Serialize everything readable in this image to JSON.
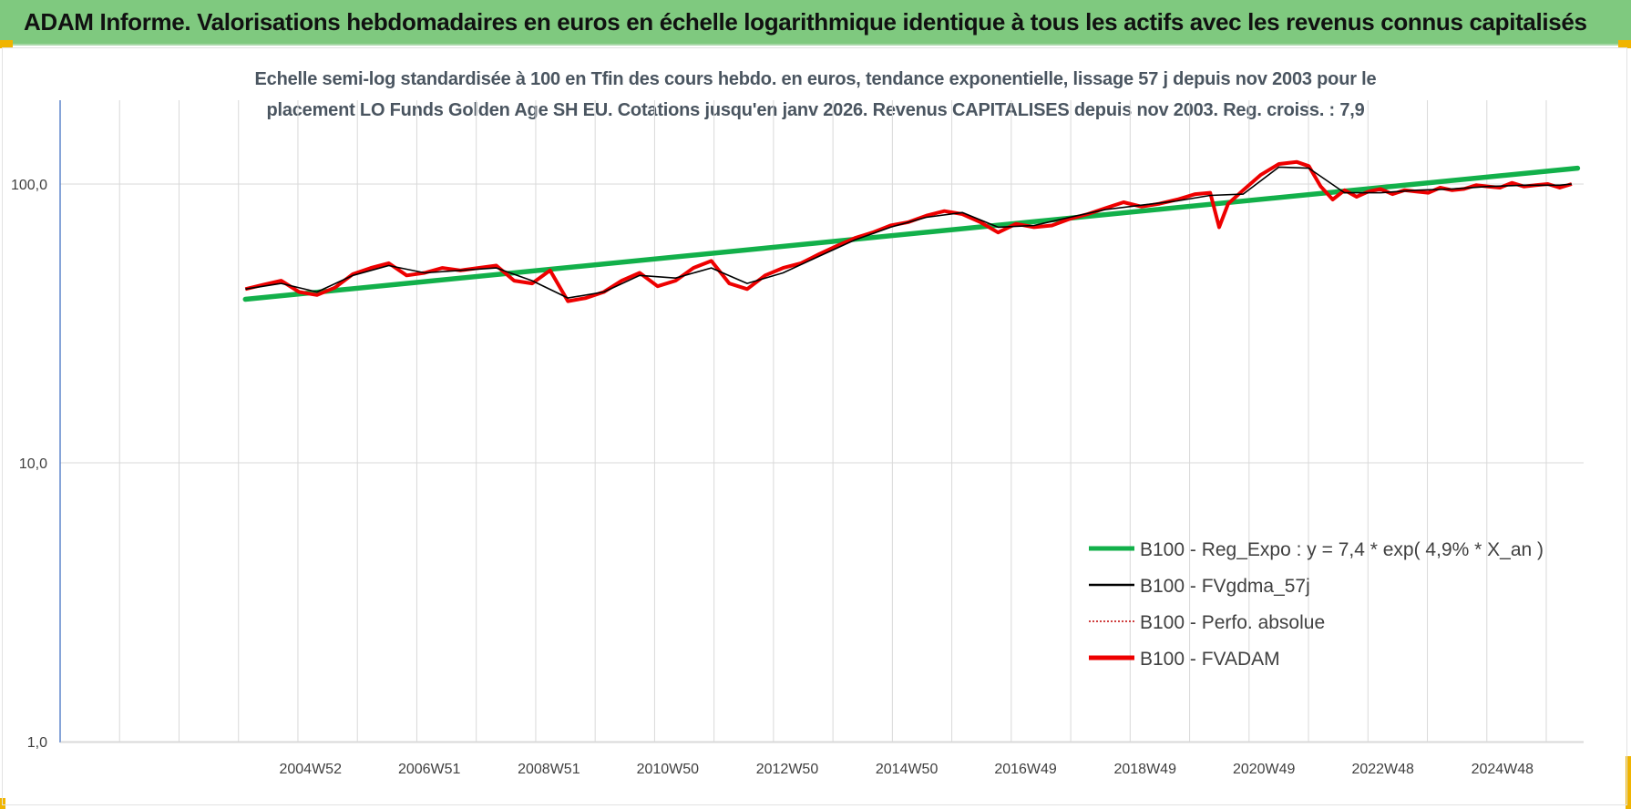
{
  "banner": {
    "title": "ADAM Informe. Valorisations hebdomadaires en euros en échelle logarithmique identique à tous les actifs avec les revenus connus capitalisés"
  },
  "colors": {
    "banner_bg": "#7fc97f",
    "corner_accent": "#f0b400",
    "reg_expo": "#12b04a",
    "fvgdma": "#000000",
    "perfo": "#c00000",
    "fvadam": "#ee0000"
  },
  "chart_data": {
    "type": "line",
    "title_line1": "Echelle semi-log standardisée à 100 en Tfin des cours hebdo. en euros, tendance exponentielle, lissage 57 j depuis nov 2003 pour le",
    "title_line2": "placement LO Funds Golden Age SH EU. Cotations jusqu'en janv 2026. Revenus CAPITALISES depuis nov 2003. Reg. croiss. : 7,9",
    "y_scale": "log",
    "ylim": [
      1,
      200
    ],
    "y_ticks": [
      "100,0",
      "10,0",
      "1,0"
    ],
    "y_tick_values": [
      100,
      10,
      1
    ],
    "xlim": [
      2000.8,
      2026.3
    ],
    "x_ticks": [
      "2004W52",
      "2006W51",
      "2008W51",
      "2010W50",
      "2012W50",
      "2014W50",
      "2016W49",
      "2018W49",
      "2020W49",
      "2022W48",
      "2024W48"
    ],
    "x_tick_values": [
      2004.99,
      2006.98,
      2008.98,
      2010.97,
      2012.97,
      2014.97,
      2016.96,
      2018.96,
      2020.95,
      2022.94,
      2024.94
    ],
    "grid": true,
    "legend_position": "bottom-right",
    "legend": [
      "B100 - Reg_Expo : y = 7,4 * exp( 4,9% *  X_an )",
      "B100 - FVgdma_57j",
      "B100 - Perfo. absolue",
      "B100 - FVADAM"
    ],
    "series": [
      {
        "name": "B100 - Reg_Expo : y = 7,4 * exp( 4,9% *  X_an )",
        "style": "line-thick",
        "x": [
          2003.9,
          2026.2
        ],
        "y": [
          38.6,
          114
        ]
      },
      {
        "name": "B100 - FVADAM",
        "style": "line-thick",
        "x": [
          2003.9,
          2004.2,
          2004.5,
          2004.8,
          2005.1,
          2005.4,
          2005.7,
          2006.0,
          2006.3,
          2006.6,
          2006.9,
          2007.2,
          2007.5,
          2007.8,
          2008.1,
          2008.4,
          2008.7,
          2009.0,
          2009.3,
          2009.6,
          2009.9,
          2010.2,
          2010.5,
          2010.8,
          2011.1,
          2011.4,
          2011.7,
          2012.0,
          2012.3,
          2012.6,
          2012.9,
          2013.2,
          2013.5,
          2013.8,
          2014.1,
          2014.4,
          2014.7,
          2015.0,
          2015.3,
          2015.6,
          2015.9,
          2016.2,
          2016.5,
          2016.8,
          2017.1,
          2017.4,
          2017.7,
          2018.0,
          2018.3,
          2018.6,
          2018.9,
          2019.2,
          2019.5,
          2019.8,
          2020.05,
          2020.2,
          2020.35,
          2020.6,
          2020.9,
          2021.2,
          2021.5,
          2021.7,
          2021.9,
          2022.1,
          2022.3,
          2022.5,
          2022.7,
          2022.9,
          2023.1,
          2023.3,
          2023.5,
          2023.7,
          2023.9,
          2024.1,
          2024.3,
          2024.5,
          2024.7,
          2024.9,
          2025.1,
          2025.3,
          2025.5,
          2025.7,
          2025.9,
          2026.1
        ],
        "y": [
          42,
          43.5,
          45,
          41,
          40,
          42.5,
          47.5,
          50,
          52,
          47,
          48,
          50,
          49,
          50,
          51,
          45,
          44,
          49,
          38,
          39,
          41,
          45,
          48,
          43,
          45,
          50,
          53,
          44,
          42,
          47,
          50,
          52,
          56,
          60,
          64,
          67,
          71,
          73,
          77,
          80,
          78,
          73,
          67,
          72,
          70,
          71,
          75,
          78,
          82,
          86,
          83,
          85,
          88,
          92,
          93,
          70,
          85,
          95,
          108,
          118,
          120,
          116,
          98,
          88,
          95,
          90,
          94,
          96,
          92,
          95,
          94,
          93,
          97,
          95,
          96,
          99,
          98,
          97,
          101,
          98,
          99,
          100,
          97,
          100
        ]
      },
      {
        "name": "B100 - FVgdma_57j",
        "style": "line",
        "x": [
          2003.9,
          2004.5,
          2005.1,
          2005.7,
          2006.3,
          2006.9,
          2007.5,
          2008.1,
          2008.7,
          2009.3,
          2009.9,
          2010.5,
          2011.1,
          2011.7,
          2012.3,
          2012.9,
          2013.5,
          2014.1,
          2014.7,
          2015.3,
          2015.9,
          2016.5,
          2017.1,
          2017.7,
          2018.3,
          2018.9,
          2019.5,
          2020.05,
          2020.6,
          2021.2,
          2021.7,
          2022.3,
          2022.9,
          2023.5,
          2024.1,
          2024.7,
          2025.3,
          2025.9,
          2026.1
        ],
        "y": [
          42,
          44,
          41,
          47,
          51,
          48,
          49,
          50,
          45,
          39,
          41,
          47,
          46,
          50,
          44,
          48,
          55,
          63,
          70,
          76,
          79,
          70,
          71,
          76,
          81,
          84,
          87,
          91,
          92,
          115,
          114,
          93,
          93,
          95,
          96,
          98,
          99,
          99,
          100
        ]
      },
      {
        "name": "B100 - Perfo. absolue",
        "style": "dotted",
        "x": [],
        "y": []
      }
    ]
  }
}
